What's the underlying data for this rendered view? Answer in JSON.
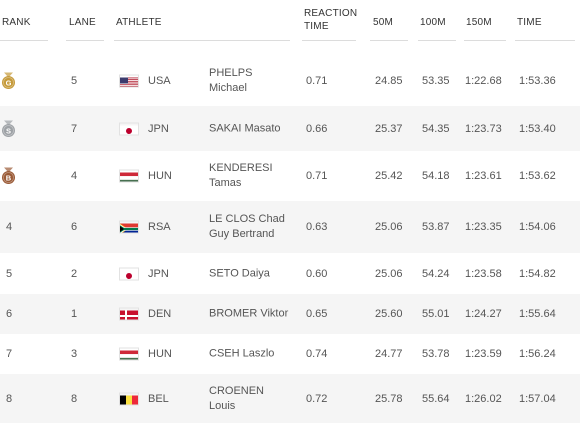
{
  "headers": {
    "rank": "RANK",
    "lane": "LANE",
    "athlete": "ATHLETE",
    "reaction_line1": "REACTION",
    "reaction_line2": "TIME",
    "m50": "50M",
    "m100": "100M",
    "m150": "150M",
    "time": "TIME"
  },
  "rows": [
    {
      "rank": "",
      "medal": "G",
      "lane": "5",
      "flag": "usa-flag",
      "country": "USA",
      "name_line1": "PHELPS",
      "name_line2": "Michael",
      "reaction": "0.71",
      "m50": "24.85",
      "m100": "53.35",
      "m150": "1:22.68",
      "time": "1:53.36"
    },
    {
      "rank": "",
      "medal": "S",
      "lane": "7",
      "flag": "jpn-flag",
      "country": "JPN",
      "name_line1": "SAKAI Masato",
      "name_line2": "",
      "reaction": "0.66",
      "m50": "25.37",
      "m100": "54.35",
      "m150": "1:23.73",
      "time": "1:53.40"
    },
    {
      "rank": "",
      "medal": "B",
      "lane": "4",
      "flag": "hun-flag",
      "country": "HUN",
      "name_line1": "KENDERESI",
      "name_line2": "Tamas",
      "reaction": "0.71",
      "m50": "25.42",
      "m100": "54.18",
      "m150": "1:23.61",
      "time": "1:53.62"
    },
    {
      "rank": "4",
      "medal": "",
      "lane": "6",
      "flag": "rsa-flag",
      "country": "RSA",
      "name_line1": "LE CLOS Chad",
      "name_line2": "Guy Bertrand",
      "reaction": "0.63",
      "m50": "25.06",
      "m100": "53.87",
      "m150": "1:23.35",
      "time": "1:54.06"
    },
    {
      "rank": "5",
      "medal": "",
      "lane": "2",
      "flag": "jpn-flag",
      "country": "JPN",
      "name_line1": "SETO Daiya",
      "name_line2": "",
      "reaction": "0.60",
      "m50": "25.06",
      "m100": "54.24",
      "m150": "1:23.58",
      "time": "1:54.82"
    },
    {
      "rank": "6",
      "medal": "",
      "lane": "1",
      "flag": "den-flag",
      "country": "DEN",
      "name_line1": "BROMER Viktor",
      "name_line2": "",
      "reaction": "0.65",
      "m50": "25.60",
      "m100": "55.01",
      "m150": "1:24.27",
      "time": "1:55.64"
    },
    {
      "rank": "7",
      "medal": "",
      "lane": "3",
      "flag": "hun-flag",
      "country": "HUN",
      "name_line1": "CSEH Laszlo",
      "name_line2": "",
      "reaction": "0.74",
      "m50": "24.77",
      "m100": "53.78",
      "m150": "1:23.59",
      "time": "1:56.24"
    },
    {
      "rank": "8",
      "medal": "",
      "lane": "8",
      "flag": "bel-flag",
      "country": "BEL",
      "name_line1": "CROENEN",
      "name_line2": "Louis",
      "reaction": "0.72",
      "m50": "25.78",
      "m100": "55.64",
      "m150": "1:26.02",
      "time": "1:57.04"
    }
  ],
  "colors": {
    "gold": "#c59a3a",
    "silver": "#9ea2a6",
    "bronze": "#9a5a36",
    "row_shade": "#f5f5f5",
    "header_rule": "#dcdcdc"
  }
}
